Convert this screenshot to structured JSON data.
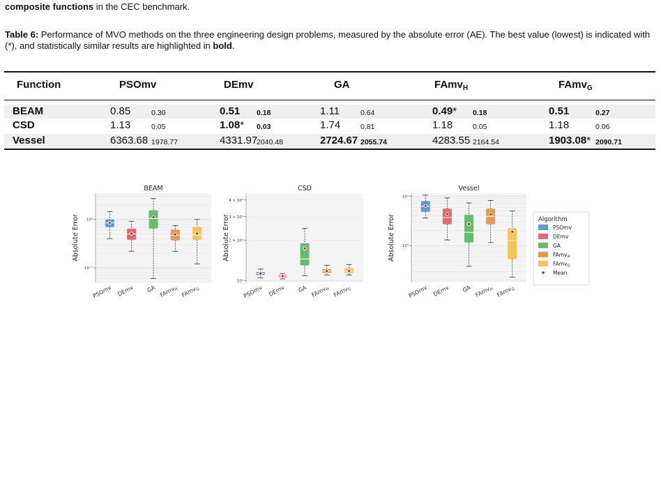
{
  "intro": {
    "bold": "composite functions",
    "rest": " in the CEC benchmark."
  },
  "caption": {
    "label": "Table 6:",
    "text": " Performance of MVO methods on the three engineering design problems, measured by the absolute error (AE). The best value (lowest) is indicated with (*), and statistically similar results are highlighted in ",
    "bold_word": "bold",
    "end": "."
  },
  "table": {
    "headers": [
      "Function",
      "PSOmv",
      "DEmv",
      "GA",
      "FAmv",
      "FAmv"
    ],
    "header_subs": [
      "",
      "",
      "",
      "",
      "H",
      "G"
    ],
    "rows": [
      {
        "name": "BEAM",
        "cells": [
          {
            "mean": "0.85",
            "std": "0.30",
            "bold": false,
            "star": ""
          },
          {
            "mean": "0.51",
            "std": "0.18",
            "bold": true,
            "star": ""
          },
          {
            "mean": "1.11",
            "std": "0.64",
            "bold": false,
            "star": ""
          },
          {
            "mean": "0.49",
            "std": "0.18",
            "bold": true,
            "star": "*"
          },
          {
            "mean": "0.51",
            "std": "0.27",
            "bold": true,
            "star": ""
          }
        ]
      },
      {
        "name": "CSD",
        "cells": [
          {
            "mean": "1.13",
            "std": "0.05",
            "bold": false,
            "star": ""
          },
          {
            "mean": "1.08",
            "std": "0.03",
            "bold": true,
            "star": "*"
          },
          {
            "mean": "1.74",
            "std": "0.81",
            "bold": false,
            "star": ""
          },
          {
            "mean": "1.18",
            "std": "0.05",
            "bold": false,
            "star": ""
          },
          {
            "mean": "1.18",
            "std": "0.06",
            "bold": false,
            "star": ""
          }
        ]
      },
      {
        "name": "Vessel",
        "cells": [
          {
            "mean": "6363.68",
            "std": "1978.77",
            "bold": false,
            "star": ""
          },
          {
            "mean": "4331.97",
            "std": "2040.48",
            "bold": false,
            "star": ""
          },
          {
            "mean": "2724.67",
            "std": "2055.74",
            "bold": true,
            "star": ""
          },
          {
            "mean": "4283.55",
            "std": "2164.54",
            "bold": false,
            "star": ""
          },
          {
            "mean": "1903.08",
            "std": "2090.71",
            "bold": true,
            "star": "*"
          }
        ]
      }
    ]
  },
  "chart_data": [
    {
      "type": "box",
      "title": "BEAM",
      "ylabel": "Absolute Error",
      "yscale": "log",
      "ylim": [
        0.05,
        3.5
      ],
      "yticks": [
        {
          "v": 1,
          "label": "10⁰"
        },
        {
          "v": 0.1,
          "label": "10⁻¹"
        }
      ],
      "categories": [
        "PSOmv",
        "DEmv",
        "GA",
        "FAmvH",
        "FAmvG"
      ],
      "boxes": [
        {
          "min": 0.4,
          "q1": 0.7,
          "median": 0.85,
          "q3": 1.0,
          "max": 1.45,
          "mean": 0.85
        },
        {
          "min": 0.22,
          "q1": 0.38,
          "median": 0.5,
          "q3": 0.65,
          "max": 0.92,
          "mean": 0.51
        },
        {
          "min": 0.06,
          "q1": 0.65,
          "median": 1.05,
          "q3": 1.55,
          "max": 2.7,
          "mean": 1.11
        },
        {
          "min": 0.22,
          "q1": 0.37,
          "median": 0.47,
          "q3": 0.62,
          "max": 0.75,
          "mean": 0.49
        },
        {
          "min": 0.12,
          "q1": 0.38,
          "median": 0.48,
          "q3": 0.7,
          "max": 1.0,
          "mean": 0.51
        }
      ]
    },
    {
      "type": "box",
      "title": "CSD",
      "ylabel": "Absolute Error",
      "yscale": "log",
      "ylim": [
        0.97,
        4.5
      ],
      "yticks": [
        {
          "v": 4,
          "label": "4 × 10⁰"
        },
        {
          "v": 3,
          "label": "3 × 10⁰"
        },
        {
          "v": 2,
          "label": "2 × 10⁰"
        },
        {
          "v": 1,
          "label": "10⁰"
        }
      ],
      "categories": [
        "PSOmv",
        "DEmv",
        "GA",
        "FAmvH",
        "FAmvG"
      ],
      "boxes": [
        {
          "min": 1.05,
          "q1": 1.1,
          "median": 1.13,
          "q3": 1.16,
          "max": 1.22,
          "mean": 1.13
        },
        {
          "min": 1.03,
          "q1": 1.06,
          "median": 1.08,
          "q3": 1.1,
          "max": 1.13,
          "mean": 1.08
        },
        {
          "min": 1.09,
          "q1": 1.3,
          "median": 1.45,
          "q3": 1.9,
          "max": 2.45,
          "mean": 1.74
        },
        {
          "min": 1.1,
          "q1": 1.14,
          "median": 1.18,
          "q3": 1.22,
          "max": 1.3,
          "mean": 1.18
        },
        {
          "min": 1.1,
          "q1": 1.14,
          "median": 1.18,
          "q3": 1.24,
          "max": 1.32,
          "mean": 1.18
        }
      ]
    },
    {
      "type": "box",
      "title": "Vessel",
      "ylabel": "Absolute Error",
      "yscale": "log",
      "ylim": [
        180,
        11500
      ],
      "yticks": [
        {
          "v": 10000,
          "label": "10⁴"
        },
        {
          "v": 1000,
          "label": "10³"
        }
      ],
      "categories": [
        "PSOmv",
        "DEmv",
        "GA",
        "FAmvH",
        "FAmvG"
      ],
      "boxes": [
        {
          "min": 3600,
          "q1": 4800,
          "median": 6200,
          "q3": 7900,
          "max": 10500,
          "mean": 6363.68
        },
        {
          "min": 1300,
          "q1": 2700,
          "median": 3700,
          "q3": 5600,
          "max": 9200,
          "mean": 4331.97
        },
        {
          "min": 380,
          "q1": 1150,
          "median": 1850,
          "q3": 4200,
          "max": 7300,
          "mean": 2724.67
        },
        {
          "min": 1150,
          "q1": 2700,
          "median": 3900,
          "q3": 5600,
          "max": 8200,
          "mean": 4283.55
        },
        {
          "min": 230,
          "q1": 530,
          "median": 1250,
          "q3": 2250,
          "max": 5000,
          "mean": 1903.08
        }
      ]
    }
  ],
  "legend": {
    "title": "Algorithm",
    "items": [
      {
        "label": "PSOmv",
        "sub": "",
        "color": "#5b9bd1"
      },
      {
        "label": "DEmv",
        "sub": "",
        "color": "#e16a6e"
      },
      {
        "label": "GA",
        "sub": "",
        "color": "#67bd6f"
      },
      {
        "label": "FAmv",
        "sub": "H",
        "color": "#e39b4d"
      },
      {
        "label": "FAmv",
        "sub": "G",
        "color": "#f6c25a"
      }
    ],
    "mean_label": "Mean",
    "mean_color": "#d7191c"
  }
}
